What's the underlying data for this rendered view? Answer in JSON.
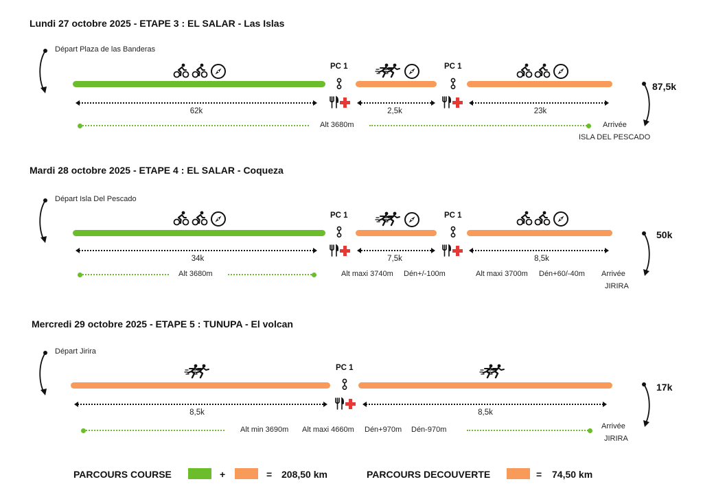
{
  "stages": [
    {
      "title": "Lundi 27 octobre 2025 - ETAPE 3 : EL SALAR - Las Islas",
      "start": "Départ Plaza de las Banderas",
      "total": "87,5k",
      "pc1": "PC 1",
      "pc2": "PC 1",
      "seg1": "62k",
      "seg2": "2,5k",
      "seg3": "23k",
      "alt_info": "Alt 3680m",
      "arrival_label": "Arrivée",
      "arrival_place": "ISLA DEL PESCADO"
    },
    {
      "title": "Mardi 28 octobre 2025 - ETAPE 4 : EL SALAR - Coqueza",
      "start": "Départ Isla Del Pescado",
      "total": "50k",
      "pc1": "PC 1",
      "pc2": "PC 1",
      "seg1": "34k",
      "seg2": "7,5k",
      "seg3": "8,5k",
      "alt_info": "Alt 3680m",
      "alt_max_a": "Alt maxi 3740m",
      "den_a": "Dén+/-100m",
      "alt_max_b": "Alt maxi 3700m",
      "den_b": "Dén+60/-40m",
      "arrival_label": "Arrivée",
      "arrival_place": "JIRIRA"
    },
    {
      "title": "Mercredi 29 octobre 2025 - ETAPE 5 : TUNUPA - El volcan",
      "start": "Départ Jirira",
      "total": "17k",
      "pc1": "PC 1",
      "seg1": "8,5k",
      "seg2": "8,5k",
      "alt_min": "Alt min 3690m",
      "alt_max": "Alt maxi 4660m",
      "den_plus": "Dén+970m",
      "den_minus": "Dén-970m",
      "arrival_label": "Arrivée",
      "arrival_place": "JIRIRA"
    }
  ],
  "legend": {
    "course_label": "PARCOURS COURSE",
    "plus": "+",
    "equals": "=",
    "course_total": "208,50 km",
    "discovery_label": "PARCOURS DECOUVERTE",
    "discovery_total": "74,50 km"
  },
  "colors": {
    "course": "#6cbd2c",
    "discovery": "#f79a5a",
    "aid_cross": "#e53935"
  },
  "icons": [
    "cyclist-icon",
    "runner-icon",
    "compass-icon",
    "aid-station-icon",
    "checkpoint-icon"
  ]
}
